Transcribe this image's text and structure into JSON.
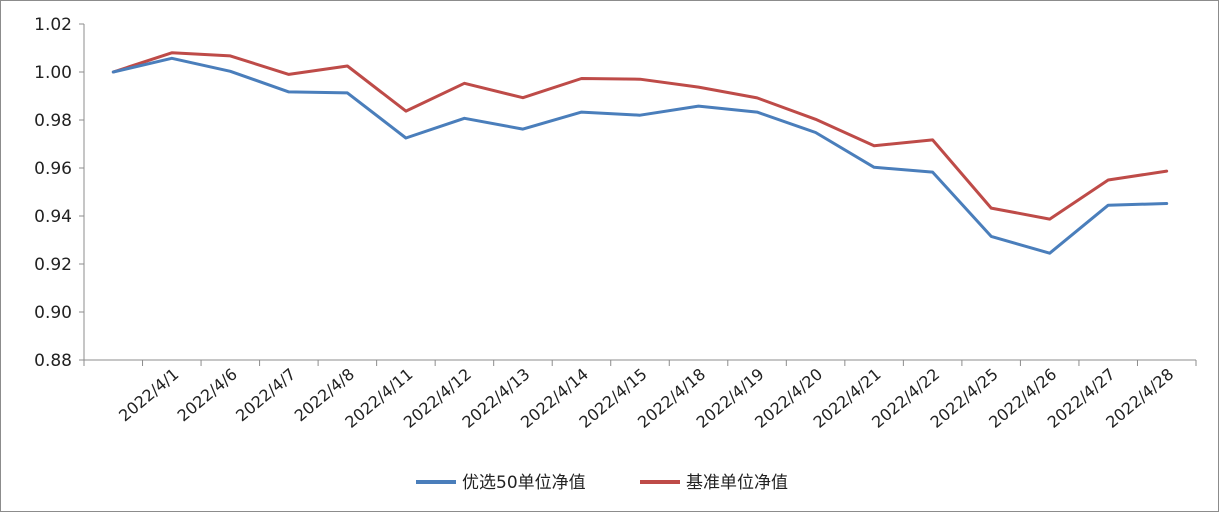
{
  "chart_data": {
    "type": "line",
    "categories": [
      "",
      "2022/4/1",
      "2022/4/6",
      "2022/4/7",
      "2022/4/8",
      "2022/4/11",
      "2022/4/12",
      "2022/4/13",
      "2022/4/14",
      "2022/4/15",
      "2022/4/18",
      "2022/4/19",
      "2022/4/20",
      "2022/4/21",
      "2022/4/22",
      "2022/4/25",
      "2022/4/26",
      "2022/4/27",
      "2022/4/28"
    ],
    "series": [
      {
        "name": "优选50单位净值",
        "color": "#4a7ebb",
        "values": [
          1.0,
          1.0057,
          1.0003,
          0.9917,
          0.9913,
          0.9725,
          0.9807,
          0.9762,
          0.9833,
          0.982,
          0.9858,
          0.9833,
          0.9748,
          0.9603,
          0.9583,
          0.9315,
          0.9245,
          0.9445,
          0.9452
        ]
      },
      {
        "name": "基准单位净值",
        "color": "#be4b48",
        "values": [
          1.0,
          1.008,
          1.0067,
          0.999,
          1.0025,
          0.9837,
          0.9953,
          0.9893,
          0.9973,
          0.997,
          0.9937,
          0.9892,
          0.9803,
          0.9693,
          0.9717,
          0.9433,
          0.9387,
          0.955,
          0.9587
        ]
      }
    ],
    "yticks": [
      "0.88",
      "0.90",
      "0.92",
      "0.94",
      "0.96",
      "0.98",
      "1.00",
      "1.02"
    ],
    "ylim": [
      0.88,
      1.02
    ],
    "grid": false,
    "legend_position": "bottom"
  }
}
